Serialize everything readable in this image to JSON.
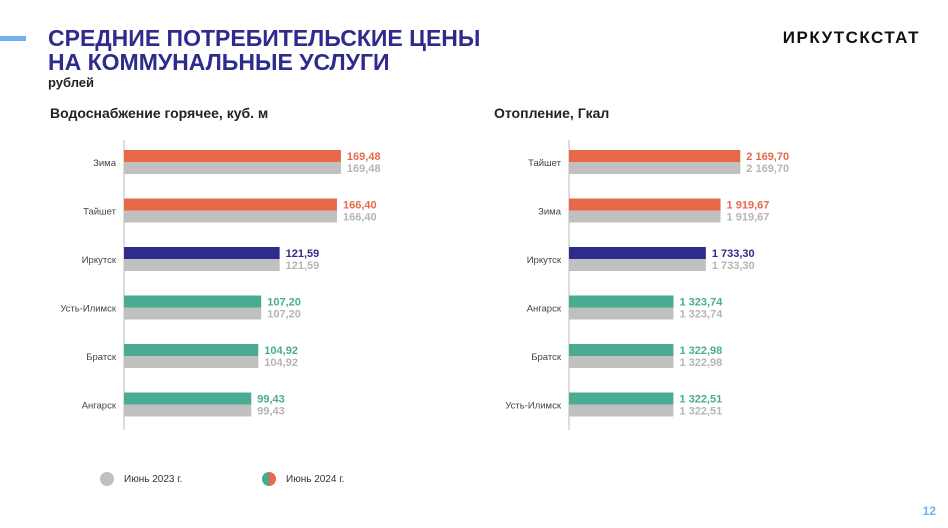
{
  "header": {
    "title_line1": "СРЕДНИЕ ПОТРЕБИТЕЛЬСКИЕ ЦЕНЫ",
    "title_line2": "НА КОММУНАЛЬНЫЕ УСЛУГИ",
    "subtitle": "рублей",
    "logo": "ИРКУТСКСТАТ"
  },
  "colors": {
    "orange": "#e8694a",
    "navy": "#2e2b8c",
    "teal": "#4aab93",
    "gray": "#c0c0c0"
  },
  "chart_data": [
    {
      "type": "bar",
      "orientation": "horizontal",
      "title": "Водоснабжение горячее, куб. м",
      "categories": [
        "Зима",
        "Тайшет",
        "Иркутск",
        "Усть-Илимск",
        "Братск",
        "Ангарск"
      ],
      "bar_colors": [
        "orange",
        "orange",
        "navy",
        "teal",
        "teal",
        "teal"
      ],
      "series": [
        {
          "name": "Июнь 2024 г.",
          "values": [
            169.48,
            166.4,
            121.59,
            107.2,
            104.92,
            99.43
          ],
          "labels": [
            "169,48",
            "166,40",
            "121,59",
            "107,20",
            "104,92",
            "99,43"
          ]
        },
        {
          "name": "Июнь 2023 г.",
          "values": [
            169.48,
            166.4,
            121.59,
            107.2,
            104.92,
            99.43
          ],
          "labels": [
            "169,48",
            "166,40",
            "121,59",
            "107,20",
            "104,92",
            "99,43"
          ]
        }
      ],
      "xlim": [
        0,
        200
      ]
    },
    {
      "type": "bar",
      "orientation": "horizontal",
      "title": "Отопление, Гкал",
      "categories": [
        "Тайшет",
        "Зима",
        "Иркутск",
        "Ангарск",
        "Братск",
        "Усть-Илимск"
      ],
      "bar_colors": [
        "orange",
        "orange",
        "navy",
        "teal",
        "teal",
        "teal"
      ],
      "series": [
        {
          "name": "Июнь 2024 г.",
          "values": [
            2169.7,
            1919.67,
            1733.3,
            1323.74,
            1322.98,
            1322.51
          ],
          "labels": [
            "2 169,70",
            "1 919,67",
            "1 733,30",
            "1 323,74",
            "1 322,98",
            "1 322,51"
          ]
        },
        {
          "name": "Июнь 2023 г.",
          "values": [
            2169.7,
            1919.67,
            1733.3,
            1323.74,
            1322.98,
            1322.51
          ],
          "labels": [
            "2 169,70",
            "1 919,67",
            "1 733,30",
            "1 323,74",
            "1 322,98",
            "1 322,51"
          ]
        }
      ],
      "xlim": [
        0,
        2850
      ]
    }
  ],
  "legend": {
    "item_2023": "Июнь 2023 г.",
    "item_2024": "Июнь 2024 г."
  },
  "page_number": "12"
}
